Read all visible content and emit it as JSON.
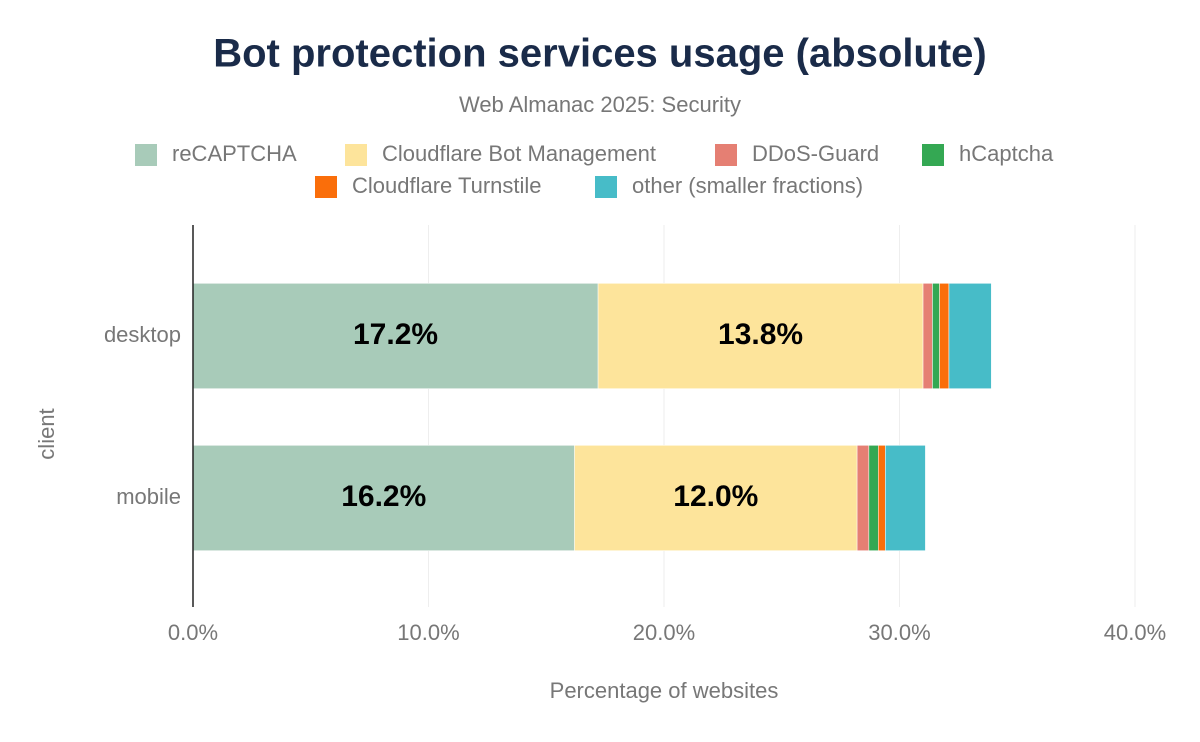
{
  "chart_data": {
    "type": "stacked-bar-horizontal",
    "title": "Bot protection services usage (absolute)",
    "subtitle": "Web Almanac 2025: Security",
    "x_label": "Percentage of websites",
    "y_label": "client",
    "categories": [
      "desktop",
      "mobile"
    ],
    "series": [
      {
        "name": "reCAPTCHA",
        "color": "#a8cbb9",
        "values": [
          17.2,
          16.2
        ],
        "value_labels": [
          "17.2%",
          "16.2%"
        ]
      },
      {
        "name": "Cloudflare Bot Management",
        "color": "#fde49b",
        "values": [
          13.8,
          12.0
        ],
        "value_labels": [
          "13.8%",
          "12.0%"
        ]
      },
      {
        "name": "DDoS-Guard",
        "color": "#e57f73",
        "values": [
          0.4,
          0.5
        ]
      },
      {
        "name": "hCaptcha",
        "color": "#34a853",
        "values": [
          0.3,
          0.4
        ]
      },
      {
        "name": "Cloudflare Turnstile",
        "color": "#fa6e0a",
        "values": [
          0.4,
          0.3
        ]
      },
      {
        "name": "other (smaller fractions)",
        "color": "#47bcc8",
        "values": [
          1.8,
          1.7
        ]
      }
    ],
    "xlim": [
      0,
      40
    ],
    "xticks": [
      {
        "value": 0,
        "label": "0.0%"
      },
      {
        "value": 10,
        "label": "10.0%"
      },
      {
        "value": 20,
        "label": "20.0%"
      },
      {
        "value": 30,
        "label": "30.0%"
      },
      {
        "value": 40,
        "label": "40.0%"
      }
    ],
    "grid": true
  }
}
